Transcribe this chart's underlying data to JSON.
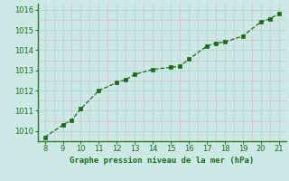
{
  "x": [
    8,
    9,
    9.5,
    10,
    11,
    12,
    12.5,
    13,
    14,
    15,
    15.5,
    16,
    17,
    17.5,
    18,
    19,
    20,
    20.5,
    21
  ],
  "y": [
    1009.7,
    1010.3,
    1010.55,
    1011.1,
    1012.0,
    1012.4,
    1012.55,
    1012.8,
    1013.05,
    1013.15,
    1013.2,
    1013.55,
    1014.2,
    1014.35,
    1014.4,
    1014.7,
    1015.4,
    1015.55,
    1015.8
  ],
  "line_color": "#1a6b1a",
  "marker_color": "#1a6b1a",
  "bg_color": "#cce8e4",
  "major_grid_color": "#b8d8d4",
  "minor_grid_color": "#d4c8d8",
  "xlabel": "Graphe pression niveau de la mer (hPa)",
  "xlabel_color": "#1a6b1a",
  "tick_color": "#1a6b1a",
  "spine_color": "#2a7a2a",
  "xlim": [
    7.6,
    21.4
  ],
  "ylim": [
    1009.5,
    1016.3
  ],
  "xticks": [
    8,
    9,
    10,
    11,
    12,
    13,
    14,
    15,
    16,
    17,
    18,
    19,
    20,
    21
  ],
  "yticks": [
    1010,
    1011,
    1012,
    1013,
    1014,
    1015,
    1016
  ],
  "x_minor": [
    8.5,
    9.5,
    10.5,
    11.5,
    12.5,
    13.5,
    14.5,
    15.5,
    16.5,
    17.5,
    18.5,
    19.5,
    20.5
  ],
  "y_minor": [
    1010.5,
    1011.5,
    1012.5,
    1013.5,
    1014.5,
    1015.5
  ]
}
